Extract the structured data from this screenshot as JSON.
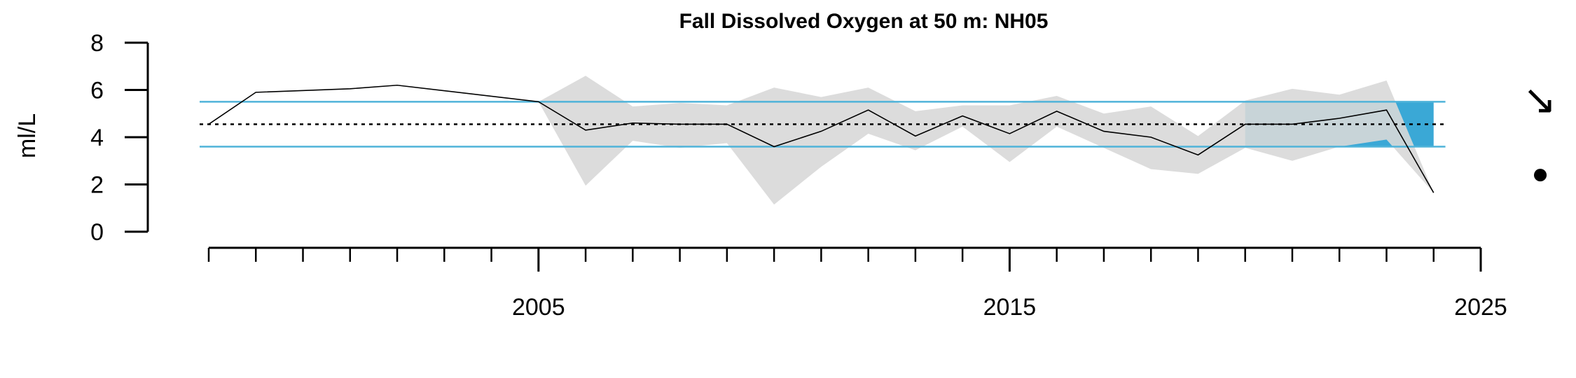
{
  "chart_data": {
    "type": "line",
    "title": "Fall Dissolved Oxygen at 50 m: NH05",
    "ylabel": "ml/L",
    "xlabel": "",
    "ylim": [
      0,
      8
    ],
    "xlim": [
      1998,
      2025
    ],
    "y_ticks": [
      "0",
      "2",
      "4",
      "6",
      "8"
    ],
    "x_ticks": [
      2005,
      2015,
      2025
    ],
    "x_tick_labels": [
      "2005",
      "2015",
      "2025"
    ],
    "series": [
      {
        "x": [
          1998,
          1999,
          2001,
          2002,
          2005,
          2006,
          2007,
          2008,
          2009,
          2010,
          2011,
          2012,
          2013,
          2014,
          2015,
          2016,
          2017,
          2018,
          2019,
          2020,
          2021,
          2022,
          2023,
          2024
        ],
        "y": [
          4.55,
          5.9,
          6.05,
          6.2,
          5.5,
          4.3,
          4.6,
          4.55,
          4.55,
          3.6,
          4.25,
          5.15,
          4.05,
          4.9,
          4.15,
          5.1,
          4.25,
          4.0,
          3.25,
          4.55,
          4.55,
          4.8,
          5.15,
          1.65
        ],
        "lower": [
          4.55,
          5.9,
          6.05,
          6.2,
          5.5,
          1.95,
          3.85,
          3.55,
          3.75,
          1.15,
          2.75,
          4.15,
          3.45,
          4.45,
          2.95,
          4.45,
          3.55,
          2.65,
          2.45,
          3.55,
          3.0,
          3.6,
          3.9,
          1.65
        ],
        "upper": [
          4.55,
          5.9,
          6.05,
          6.2,
          5.5,
          6.6,
          5.3,
          5.45,
          5.35,
          6.1,
          5.7,
          6.1,
          5.1,
          5.35,
          5.35,
          5.75,
          5.0,
          5.3,
          4.05,
          5.55,
          6.05,
          5.8,
          6.4,
          1.65
        ]
      }
    ],
    "mean": 4.55,
    "upper_sd": 5.5,
    "lower_sd": 3.6,
    "highlight_period": [
      2020,
      2024
    ],
    "trend_symbol": "↘",
    "status_symbol": "●",
    "colors": {
      "line": "#000000",
      "ci_band": "#d8d8d8",
      "sd_lines": "#4fb3d9",
      "highlight": "#3aa8d6",
      "mean_line": "#000000"
    },
    "grid": false
  }
}
